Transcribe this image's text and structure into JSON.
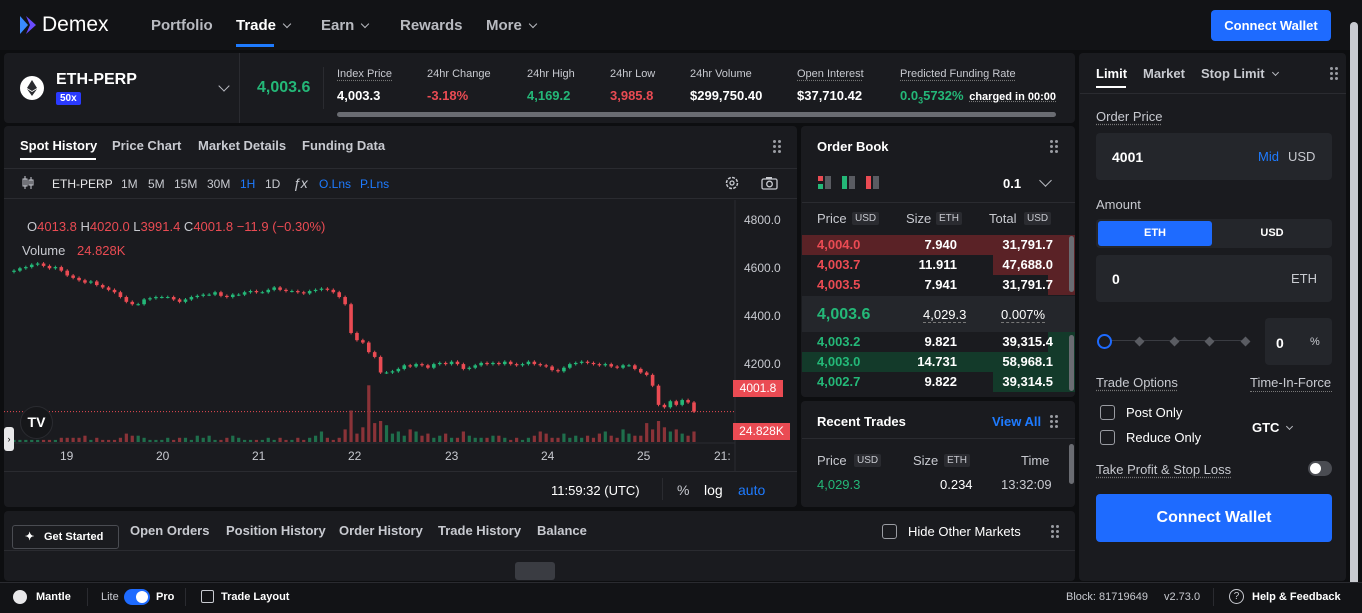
{
  "brand": {
    "name": "Demex"
  },
  "nav": {
    "portfolio": "Portfolio",
    "trade": "Trade",
    "earn": "Earn",
    "rewards": "Rewards",
    "more": "More",
    "connect_wallet": "Connect Wallet"
  },
  "market": {
    "symbol": "ETH-PERP",
    "leverage": "50x",
    "mark_price": "4,003.6",
    "stats": [
      {
        "label": "Index Price",
        "value": "4,003.3",
        "tone": "white"
      },
      {
        "label": "24hr Change",
        "value": "-3.18%",
        "tone": "red"
      },
      {
        "label": "24hr High",
        "value": "4,169.2",
        "tone": "green"
      },
      {
        "label": "24hr Low",
        "value": "3,985.8",
        "tone": "red"
      },
      {
        "label": "24hr Volume",
        "value": "$299,750.40",
        "tone": "white"
      },
      {
        "label": "Open Interest",
        "value": "$37,710.42",
        "tone": "white"
      },
      {
        "label": "Predicted Funding Rate",
        "value_prefix": "0.0",
        "value_sub": "3",
        "value_rest": "5732%",
        "suffix": "charged in 00:00"
      }
    ]
  },
  "chart_tabs": [
    "Spot History",
    "Price Chart",
    "Market Details",
    "Funding Data"
  ],
  "chart_toolbar": {
    "symbol": "ETH-PERP",
    "intervals": [
      "1M",
      "5M",
      "15M",
      "30M",
      "1H",
      "1D"
    ],
    "active_interval": "1H",
    "o_lns": "O.Lns",
    "p_lns": "P.Lns"
  },
  "ohlc": {
    "o_label": "O",
    "o": "4013.8",
    "h_label": "H",
    "h": "4020.0",
    "l_label": "L",
    "l": "3991.4",
    "c_label": "C",
    "c": "4001.8",
    "change": "−11.9 (−0.30%)",
    "volume_label": "Volume",
    "volume": "24.828K"
  },
  "chart_footer": {
    "time": "11:59:32 (UTC)",
    "pct": "%",
    "log": "log",
    "auto": "auto"
  },
  "chart_data": {
    "type": "candlestick",
    "x_ticks": [
      "19",
      "20",
      "21",
      "22",
      "23",
      "24",
      "25",
      "21:"
    ],
    "y_ticks": [
      "4800.0",
      "4600.0",
      "4400.0",
      "4200.0"
    ],
    "ylim": [
      3925,
      4885
    ],
    "last_price_label": "4001.8",
    "volume_label": "24.828K",
    "closes": [
      4590,
      4600,
      4605,
      4615,
      4620,
      4610,
      4600,
      4605,
      4590,
      4570,
      4560,
      4550,
      4540,
      4545,
      4530,
      4520,
      4510,
      4500,
      4480,
      4460,
      4450,
      4450,
      4470,
      4475,
      4480,
      4480,
      4480,
      4470,
      4460,
      4470,
      4480,
      4485,
      4490,
      4490,
      4500,
      4485,
      4480,
      4490,
      4490,
      4500,
      4505,
      4500,
      4500,
      4510,
      4520,
      4510,
      4505,
      4505,
      4500,
      4495,
      4505,
      4510,
      4515,
      4510,
      4500,
      4480,
      4450,
      4330,
      4300,
      4290,
      4250,
      4230,
      4165,
      4165,
      4170,
      4180,
      4195,
      4190,
      4200,
      4195,
      4185,
      4200,
      4205,
      4200,
      4210,
      4200,
      4180,
      4185,
      4195,
      4205,
      4200,
      4205,
      4200,
      4210,
      4200,
      4195,
      4200,
      4210,
      4200,
      4195,
      4190,
      4175,
      4170,
      4185,
      4200,
      4205,
      4210,
      4205,
      4200,
      4195,
      4200,
      4190,
      4185,
      4195,
      4195,
      4180,
      4165,
      4155,
      4110,
      4030,
      4020,
      4045,
      4030,
      4050,
      4040,
      4001.8
    ],
    "volumes": [
      1,
      1,
      1,
      1,
      1,
      1,
      1,
      1,
      2,
      2,
      2,
      2,
      3,
      1,
      2,
      1,
      1,
      1,
      2,
      4,
      3,
      3,
      2,
      1,
      1,
      1,
      2,
      1,
      2,
      2,
      1,
      3,
      2,
      3,
      1,
      1,
      2,
      3,
      2,
      1,
      1,
      1,
      1,
      2,
      1,
      2,
      1,
      1,
      2,
      1,
      2,
      3,
      5,
      2,
      1,
      2,
      6,
      15,
      4,
      7,
      27,
      9,
      10,
      8,
      4,
      5,
      3,
      6,
      5,
      3,
      4,
      2,
      3,
      4,
      2,
      2,
      5,
      3,
      2,
      2,
      2,
      3,
      3,
      2,
      1,
      2,
      1,
      2,
      3,
      5,
      4,
      2,
      2,
      4,
      2,
      3,
      2,
      3,
      2,
      4,
      5,
      3,
      2,
      6,
      4,
      3,
      3,
      9,
      6,
      10,
      7,
      5,
      6,
      4,
      3,
      5
    ]
  },
  "order_book": {
    "title": "Order Book",
    "tick": "0.1",
    "col_price": "Price",
    "col_price_unit": "USD",
    "col_size": "Size",
    "col_size_unit": "ETH",
    "col_total": "Total",
    "col_total_unit": "USD",
    "asks": [
      {
        "price": "4,004.0",
        "size": "7.940",
        "total": "31,791.7",
        "depth": 1.0
      },
      {
        "price": "4,003.7",
        "size": "11.911",
        "total": "47,688.0",
        "depth": 0.3
      },
      {
        "price": "4,003.5",
        "size": "7.941",
        "total": "31,791.7",
        "depth": 0.1
      }
    ],
    "mid": {
      "price": "4,003.6",
      "value": "4,029.3",
      "pct": "0.007%"
    },
    "bids": [
      {
        "price": "4,003.2",
        "size": "9.821",
        "total": "39,315.4",
        "depth": 0.1
      },
      {
        "price": "4,003.0",
        "size": "14.731",
        "total": "58,968.1",
        "depth": 1.0
      },
      {
        "price": "4,002.7",
        "size": "9.822",
        "total": "39,314.5",
        "depth": 0.3
      }
    ]
  },
  "recent_trades": {
    "title": "Recent Trades",
    "view_all": "View All",
    "col_price": "Price",
    "col_price_unit": "USD",
    "col_size": "Size",
    "col_size_unit": "ETH",
    "col_time": "Time",
    "rows": [
      {
        "price": "4,029.3",
        "size": "0.234",
        "time": "13:32:09"
      }
    ]
  },
  "bottom": {
    "get_started": "Get Started",
    "tabs": [
      "Open Orders",
      "Position History",
      "Order History",
      "Trade History",
      "Balance"
    ],
    "hide_other": "Hide Other Markets"
  },
  "order_form": {
    "tabs": [
      "Limit",
      "Market",
      "Stop Limit"
    ],
    "order_price_label": "Order Price",
    "order_price": "4001",
    "mid": "Mid",
    "usd": "USD",
    "amount_label": "Amount",
    "unit_eth": "ETH",
    "unit_usd": "USD",
    "amount_value": "0",
    "amount_unit": "ETH",
    "slider_pct": "0",
    "pct_sign": "%",
    "trade_options": "Trade Options",
    "time_in_force": "Time-In-Force",
    "post_only": "Post Only",
    "reduce_only": "Reduce Only",
    "tif_value": "GTC",
    "tp_sl": "Take Profit & Stop Loss",
    "connect_wallet": "Connect Wallet"
  },
  "status_bar": {
    "network": "Mantle",
    "lite": "Lite",
    "pro": "Pro",
    "trade_layout": "Trade Layout",
    "block": "Block: 81719649",
    "version": "v2.73.0",
    "help": "Help & Feedback"
  }
}
